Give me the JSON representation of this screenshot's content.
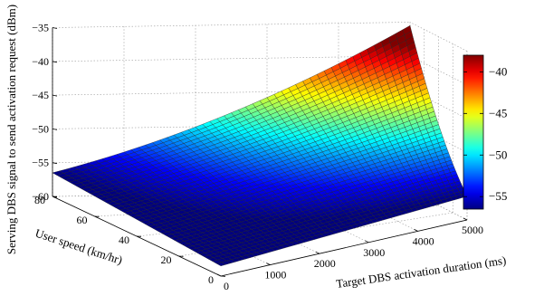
{
  "chart_data": {
    "type": "surface",
    "title": "",
    "xlabel": "Target DBS activation duration (ms)",
    "ylabel": "User speed (km/hr)",
    "zlabel": "Serving DBS signal to send activation request (dBm)",
    "xlim": [
      0,
      5000
    ],
    "ylim": [
      0,
      80
    ],
    "zlim": [
      -60,
      -35
    ],
    "x_ticks": [
      0,
      1000,
      2000,
      3000,
      4000,
      5000
    ],
    "y_ticks": [
      0,
      20,
      40,
      60,
      80
    ],
    "z_ticks": [
      -60,
      -55,
      -50,
      -45,
      -40,
      -35
    ],
    "x_tick_labels": [
      "0",
      "1000",
      "2000",
      "3000",
      "4000",
      "5000"
    ],
    "y_tick_labels": [
      "0",
      "20",
      "40",
      "60",
      "80"
    ],
    "z_tick_labels": [
      "−60",
      "−55",
      "−50",
      "−45",
      "−40",
      "−35"
    ],
    "surface_corners": [
      {
        "x": 0,
        "y": 0,
        "z": -58.5
      },
      {
        "x": 5000,
        "y": 0,
        "z": -56.5
      },
      {
        "x": 0,
        "y": 80,
        "z": -56.5
      },
      {
        "x": 5000,
        "y": 80,
        "z": -35.5
      }
    ],
    "grid_resolution": [
      50,
      40
    ],
    "colormap": "jet",
    "colorbar": {
      "range": [
        -56.5,
        -38
      ],
      "ticks": [
        -55,
        -50,
        -45,
        -40
      ],
      "tick_labels": [
        "−55",
        "−50",
        "−45",
        "−40"
      ]
    },
    "grid": true,
    "box": true
  }
}
